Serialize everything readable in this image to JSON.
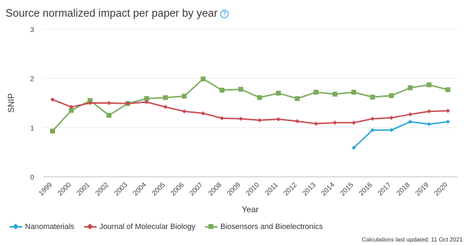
{
  "chart_data": {
    "type": "line",
    "title": "Source normalized impact per paper by year",
    "xlabel": "Year",
    "ylabel": "SNIP",
    "x": [
      "1999",
      "2000",
      "2001",
      "2002",
      "2003",
      "2004",
      "2005",
      "2006",
      "2007",
      "2008",
      "2009",
      "2010",
      "2011",
      "2012",
      "2013",
      "2014",
      "2015",
      "2016",
      "2017",
      "2018",
      "2019",
      "2020"
    ],
    "ylim": [
      0,
      3
    ],
    "yticks": [
      "0",
      "1",
      "2",
      "3"
    ],
    "grid": true,
    "legend": "bottom",
    "series": [
      {
        "name": "Nanomaterials",
        "color": "#2aa6d5",
        "marker": "diamond",
        "values": [
          null,
          null,
          null,
          null,
          null,
          null,
          null,
          null,
          null,
          null,
          null,
          null,
          null,
          null,
          null,
          null,
          0.59,
          0.95,
          0.95,
          1.12,
          1.07,
          1.12
        ]
      },
      {
        "name": "Journal of Molecular Biology",
        "color": "#c9474f",
        "marker": "diamond",
        "values": [
          1.57,
          1.42,
          1.5,
          1.5,
          1.49,
          1.52,
          1.42,
          1.33,
          1.29,
          1.19,
          1.18,
          1.15,
          1.17,
          1.13,
          1.08,
          1.1,
          1.1,
          1.18,
          1.2,
          1.27,
          1.33,
          1.34
        ]
      },
      {
        "name": "Biosensors and Bioelectronics",
        "color": "#7aac5a",
        "marker": "square",
        "values": [
          0.93,
          1.35,
          1.55,
          1.25,
          1.49,
          1.59,
          1.61,
          1.64,
          1.99,
          1.76,
          1.78,
          1.61,
          1.7,
          1.59,
          1.72,
          1.68,
          1.72,
          1.62,
          1.65,
          1.81,
          1.87,
          1.77
        ]
      }
    ]
  },
  "footnote": "Calculations last updated: 11 Oct 2021",
  "icons": {
    "help": "help-circle-icon",
    "help_glyph": "?"
  }
}
